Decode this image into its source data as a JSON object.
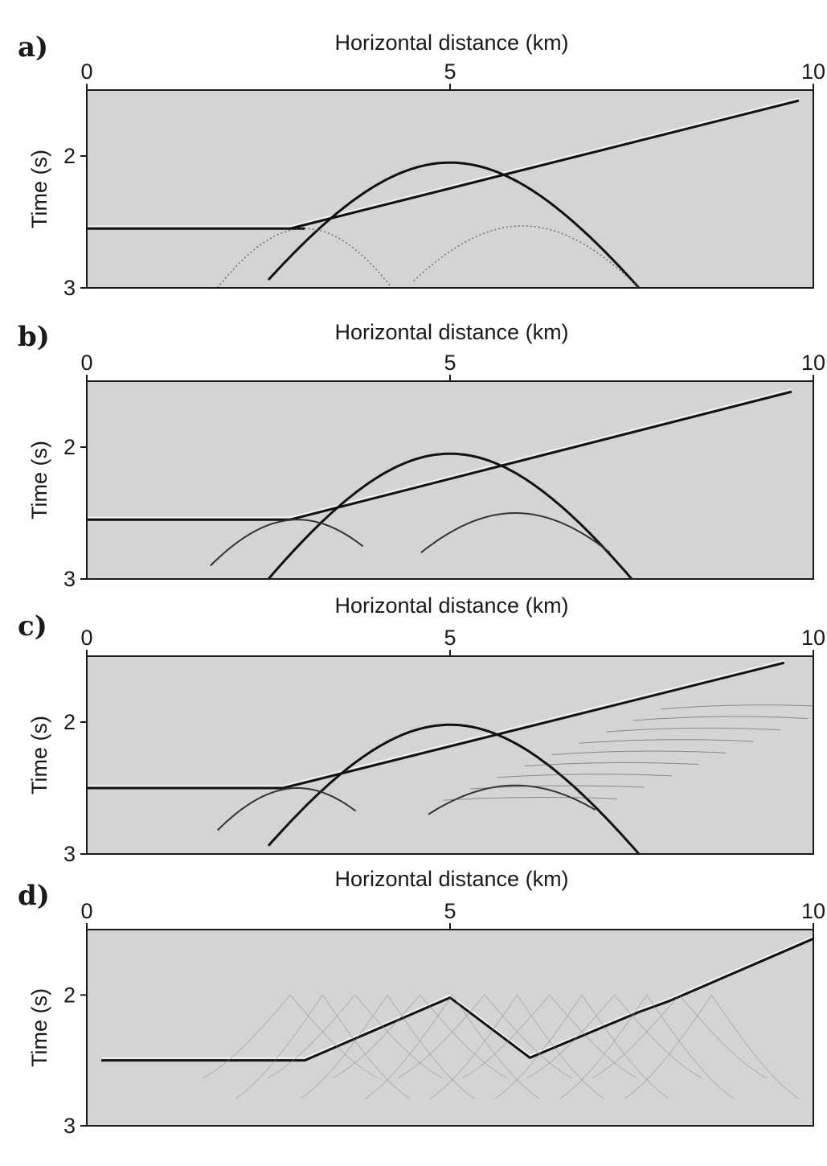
{
  "chart_data": [
    {
      "type": "line",
      "panel_label": "a)",
      "xlabel": "Horizontal distance (km)",
      "ylabel": "Time (s)",
      "xlim": [
        0,
        10
      ],
      "ylim": [
        1.5,
        3
      ],
      "y_inverted": true,
      "x_ticks": [
        "0",
        "5",
        "10"
      ],
      "y_ticks": [
        "2",
        "3"
      ],
      "series": [
        {
          "kind": "flat",
          "x": [
            0,
            3.0
          ],
          "y": [
            2.55,
            2.55
          ]
        },
        {
          "kind": "ramp",
          "x": [
            2.8,
            9.8
          ],
          "y": [
            2.55,
            1.58
          ]
        },
        {
          "kind": "hump",
          "x": [
            2.5,
            7.6
          ],
          "y": [
            2.05,
            3.0
          ],
          "apex_x": 5.0,
          "apex_y": 2.05
        },
        {
          "kind": "diffraction",
          "x": [
            1.8,
            4.2
          ],
          "y": [
            3.0,
            2.55
          ],
          "apex_x": 3.0,
          "apex_y": 2.55,
          "faint": true
        },
        {
          "kind": "diffraction",
          "x": [
            4.5,
            7.6
          ],
          "y": [
            3.0,
            2.53
          ],
          "apex_x": 6.0,
          "apex_y": 2.53,
          "faint": true
        }
      ]
    },
    {
      "type": "line",
      "panel_label": "b)",
      "xlabel": "Horizontal distance (km)",
      "ylabel": "Time (s)",
      "xlim": [
        0,
        10
      ],
      "ylim": [
        1.5,
        3
      ],
      "y_inverted": true,
      "x_ticks": [
        "0",
        "5",
        "10"
      ],
      "y_ticks": [
        "2",
        "3"
      ],
      "series": [
        {
          "kind": "flat",
          "x": [
            0,
            2.8
          ],
          "y": [
            2.55,
            2.55
          ]
        },
        {
          "kind": "ramp",
          "x": [
            2.8,
            9.7
          ],
          "y": [
            2.55,
            1.58
          ]
        },
        {
          "kind": "hump",
          "x": [
            2.5,
            7.5
          ],
          "y": [
            2.05,
            3.0
          ],
          "apex_x": 5.0,
          "apex_y": 2.05
        },
        {
          "kind": "diffraction",
          "x": [
            1.7,
            3.8
          ],
          "y": [
            2.9,
            2.55
          ],
          "apex_x": 2.9,
          "apex_y": 2.55,
          "faint": false
        },
        {
          "kind": "diffraction",
          "x": [
            4.6,
            7.2
          ],
          "y": [
            2.8,
            2.5
          ],
          "apex_x": 5.9,
          "apex_y": 2.5,
          "faint": false
        }
      ]
    },
    {
      "type": "line",
      "panel_label": "c)",
      "xlabel": "Horizontal distance (km)",
      "ylabel": "Time (s)",
      "xlim": [
        0,
        10
      ],
      "ylim": [
        1.5,
        3
      ],
      "y_inverted": true,
      "x_ticks": [
        "0",
        "5",
        "10"
      ],
      "y_ticks": [
        "2",
        "3"
      ],
      "series": [
        {
          "kind": "flat",
          "x": [
            0,
            2.7
          ],
          "y": [
            2.5,
            2.5
          ]
        },
        {
          "kind": "ramp",
          "x": [
            2.7,
            9.6
          ],
          "y": [
            2.5,
            1.55
          ]
        },
        {
          "kind": "hump",
          "x": [
            2.5,
            7.6
          ],
          "y": [
            2.02,
            3.0
          ],
          "apex_x": 5.0,
          "apex_y": 2.02
        },
        {
          "kind": "diffraction",
          "x": [
            1.8,
            3.7
          ],
          "y": [
            2.82,
            2.5
          ],
          "apex_x": 2.9,
          "apex_y": 2.5,
          "faint": false
        },
        {
          "kind": "diffraction",
          "x": [
            4.7,
            7.0
          ],
          "y": [
            2.7,
            2.48
          ],
          "apex_x": 5.9,
          "apex_y": 2.48,
          "faint": false
        },
        {
          "kind": "fan",
          "x": [
            6.3,
            9.3
          ],
          "y": [
            2.55,
            1.85
          ]
        }
      ]
    },
    {
      "type": "line",
      "panel_label": "d)",
      "xlabel": "Horizontal distance (km)",
      "ylabel": "Time (s)",
      "xlim": [
        0,
        10
      ],
      "ylim": [
        1.5,
        3
      ],
      "y_inverted": true,
      "x_ticks": [
        "0",
        "5",
        "10"
      ],
      "y_ticks": [
        "2",
        "3"
      ],
      "series": [
        {
          "kind": "polyline",
          "x": [
            0.2,
            3.0,
            5.0,
            6.1,
            7.6,
            8.0,
            10.0
          ],
          "y": [
            2.5,
            2.5,
            2.02,
            2.48,
            2.13,
            2.05,
            1.57
          ]
        },
        {
          "kind": "smear",
          "x": [
            2.8,
            8.6
          ],
          "y": [
            2.0,
            2.95
          ]
        }
      ]
    }
  ]
}
